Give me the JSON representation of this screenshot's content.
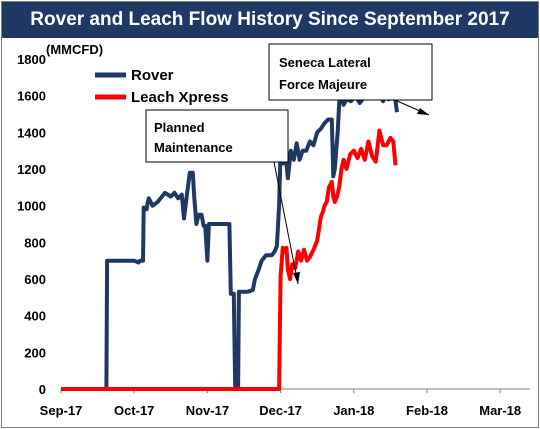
{
  "chart_data": {
    "type": "line",
    "title": "Rover and Leach Flow History Since September 2017",
    "ylabel": "(MMCFD)",
    "ylim": [
      0,
      1800
    ],
    "yticks": [
      0,
      200,
      400,
      600,
      800,
      1000,
      1200,
      1400,
      1600,
      1800
    ],
    "x_categories": [
      "Sep-17",
      "Oct-17",
      "Nov-17",
      "Dec-17",
      "Jan-18",
      "Feb-18",
      "Mar-18"
    ],
    "legend_position": "top-left",
    "grid": false,
    "annotations": [
      {
        "lines": [
          "Planned",
          "Maintenance"
        ],
        "points_to": "Rover dip to 0 in early Dec-17"
      },
      {
        "lines": [
          "Seneca Lateral",
          "Force Majeure"
        ],
        "points_to": "Rover dip in early Feb-18"
      }
    ],
    "series": [
      {
        "name": "Rover",
        "color": "#1f3864",
        "points": [
          [
            0,
            0
          ],
          [
            0.62,
            0
          ],
          [
            0.63,
            700
          ],
          [
            0.7,
            700
          ],
          [
            0.9,
            700
          ],
          [
            1,
            700
          ],
          [
            1.06,
            690
          ],
          [
            1.08,
            700
          ],
          [
            1.12,
            700
          ],
          [
            1.13,
            990
          ],
          [
            1.17,
            980
          ],
          [
            1.18,
            1010
          ],
          [
            1.2,
            1040
          ],
          [
            1.25,
            1000
          ],
          [
            1.32,
            1020
          ],
          [
            1.38,
            1050
          ],
          [
            1.42,
            1070
          ],
          [
            1.5,
            1050
          ],
          [
            1.55,
            1070
          ],
          [
            1.6,
            1040
          ],
          [
            1.65,
            1060
          ],
          [
            1.68,
            930
          ],
          [
            1.72,
            1060
          ],
          [
            1.76,
            1180
          ],
          [
            1.8,
            1180
          ],
          [
            1.82,
            1050
          ],
          [
            1.85,
            900
          ],
          [
            1.88,
            950
          ],
          [
            1.92,
            950
          ],
          [
            1.95,
            890
          ],
          [
            1.97,
            890
          ],
          [
            2.0,
            700
          ],
          [
            2.02,
            900
          ],
          [
            2.3,
            900
          ],
          [
            2.32,
            520
          ],
          [
            2.36,
            520
          ],
          [
            2.38,
            0
          ],
          [
            2.42,
            0
          ],
          [
            2.43,
            530
          ],
          [
            2.55,
            530
          ],
          [
            2.62,
            540
          ],
          [
            2.65,
            600
          ],
          [
            2.7,
            650
          ],
          [
            2.74,
            700
          ],
          [
            2.8,
            730
          ],
          [
            2.88,
            730
          ],
          [
            2.92,
            750
          ],
          [
            2.95,
            780
          ],
          [
            2.98,
            1000
          ],
          [
            3.0,
            1310
          ],
          [
            3.03,
            1230
          ],
          [
            3.06,
            1300
          ],
          [
            3.1,
            1150
          ],
          [
            3.14,
            1300
          ],
          [
            3.18,
            1250
          ],
          [
            3.22,
            1340
          ],
          [
            3.26,
            1250
          ],
          [
            3.3,
            1300
          ],
          [
            3.35,
            1300
          ],
          [
            3.4,
            1350
          ],
          [
            3.45,
            1330
          ],
          [
            3.5,
            1400
          ],
          [
            3.55,
            1420
          ],
          [
            3.6,
            1450
          ],
          [
            3.65,
            1470
          ],
          [
            3.7,
            1470
          ],
          [
            3.72,
            1160
          ],
          [
            3.74,
            1200
          ],
          [
            3.76,
            1300
          ],
          [
            3.78,
            1400
          ],
          [
            3.8,
            1560
          ],
          [
            3.82,
            1620
          ],
          [
            3.86,
            1550
          ],
          [
            3.9,
            1580
          ],
          [
            3.96,
            1570
          ],
          [
            4.02,
            1600
          ],
          [
            4.08,
            1560
          ],
          [
            4.14,
            1590
          ],
          [
            4.2,
            1600
          ],
          [
            4.3,
            1590
          ],
          [
            4.36,
            1600
          ],
          [
            4.4,
            1570
          ],
          [
            4.45,
            1640
          ],
          [
            4.48,
            1580
          ],
          [
            4.52,
            1680
          ],
          [
            4.55,
            1590
          ],
          [
            4.57,
            1570
          ],
          [
            4.59,
            1510
          ]
        ]
      },
      {
        "name": "Leach Xpress",
        "color": "#ff0000",
        "points": [
          [
            0,
            0
          ],
          [
            2.98,
            0
          ],
          [
            3.0,
            620
          ],
          [
            3.03,
            770
          ],
          [
            3.06,
            750
          ],
          [
            3.08,
            770
          ],
          [
            3.1,
            650
          ],
          [
            3.13,
            600
          ],
          [
            3.16,
            680
          ],
          [
            3.2,
            660
          ],
          [
            3.24,
            750
          ],
          [
            3.28,
            700
          ],
          [
            3.32,
            760
          ],
          [
            3.36,
            700
          ],
          [
            3.4,
            720
          ],
          [
            3.45,
            760
          ],
          [
            3.5,
            810
          ],
          [
            3.55,
            940
          ],
          [
            3.58,
            970
          ],
          [
            3.6,
            1000
          ],
          [
            3.63,
            1020
          ],
          [
            3.66,
            1100
          ],
          [
            3.7,
            1130
          ],
          [
            3.72,
            1050
          ],
          [
            3.74,
            1020
          ],
          [
            3.77,
            1050
          ],
          [
            3.8,
            1100
          ],
          [
            3.83,
            1200
          ],
          [
            3.86,
            1250
          ],
          [
            3.9,
            1200
          ],
          [
            3.95,
            1280
          ],
          [
            4.0,
            1300
          ],
          [
            4.05,
            1260
          ],
          [
            4.1,
            1310
          ],
          [
            4.15,
            1250
          ],
          [
            4.2,
            1350
          ],
          [
            4.25,
            1270
          ],
          [
            4.3,
            1240
          ],
          [
            4.35,
            1410
          ],
          [
            4.4,
            1330
          ],
          [
            4.45,
            1330
          ],
          [
            4.5,
            1370
          ],
          [
            4.54,
            1350
          ],
          [
            4.57,
            1220
          ]
        ]
      }
    ]
  }
}
